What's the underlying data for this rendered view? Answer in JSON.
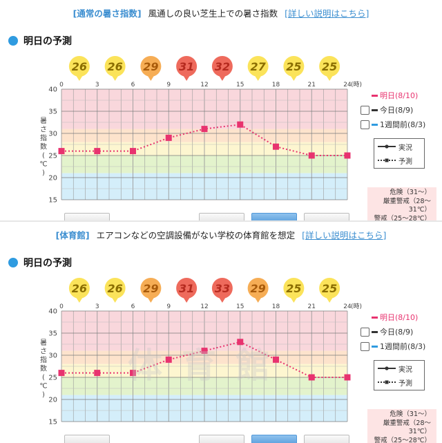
{
  "panels": [
    {
      "tag": "[通常の暑さ指数]",
      "description": "風通しの良い芝生上での暑さ指数",
      "link": "[詳しい説明はこちら]",
      "section_title": "明日の予測",
      "watermark": "",
      "legend": {
        "tomorrow": "明日(8/10)",
        "today": "今日(8/9)",
        "week_ago": "1週間前(8/3)",
        "actual": "実況",
        "forecast": "予測",
        "tomorrow_color": "#e8336f",
        "week_ago_color": "#2f9be0"
      },
      "warning": {
        "danger": "危険（31～）",
        "severe": "厳重警戒（28～31℃）",
        "caution": "警戒（25～28℃）"
      }
    },
    {
      "tag": "[体育館]",
      "description": "エアコンなどの空調設備がない学校の体育館を想定",
      "link": "[詳しい説明はこちら]",
      "section_title": "明日の予測",
      "watermark": "体育館",
      "legend": {
        "tomorrow": "明日(8/10)",
        "today": "今日(8/9)",
        "week_ago": "1週間前(8/3)",
        "actual": "実況",
        "forecast": "予測",
        "tomorrow_color": "#e8336f",
        "week_ago_color": "#2f9be0"
      },
      "warning": {
        "danger": "危険（31～）",
        "severe": "厳重警戒（28～31℃）",
        "caution": "警戒（25～28℃）"
      }
    }
  ],
  "chart_data": [
    {
      "type": "line",
      "x": [
        0,
        3,
        6,
        9,
        12,
        15,
        18,
        21,
        24
      ],
      "x_ticks": [
        "0",
        "3",
        "6",
        "9",
        "12",
        "15",
        "18",
        "21",
        "24"
      ],
      "x_unit": "(時)",
      "series": [
        {
          "name": "明日(8/10)",
          "values": [
            26,
            26,
            26,
            29,
            31,
            32,
            27,
            25,
            25
          ]
        }
      ],
      "badges": [
        26,
        26,
        29,
        31,
        32,
        27,
        25,
        25
      ],
      "ylabel": "暑さ指数(℃)",
      "ylim": [
        15,
        40
      ],
      "y_ticks": [
        "40",
        "35",
        "30",
        "25",
        "20",
        "15"
      ],
      "bands": {
        "danger": "#f9d7dc",
        "severe": "#fde3cc",
        "caution": "#fdf6d0",
        "care": "#e3f3cc",
        "safe": "#d4eefa"
      },
      "grid": true
    },
    {
      "type": "line",
      "x": [
        0,
        3,
        6,
        9,
        12,
        15,
        18,
        21,
        24
      ],
      "x_ticks": [
        "0",
        "3",
        "6",
        "9",
        "12",
        "15",
        "18",
        "21",
        "24"
      ],
      "x_unit": "(時)",
      "series": [
        {
          "name": "明日(8/10)",
          "values": [
            26,
            26,
            26,
            29,
            31,
            33,
            29,
            25,
            25
          ]
        }
      ],
      "badges": [
        26,
        26,
        29,
        31,
        33,
        29,
        25,
        25
      ],
      "ylabel": "暑さ指数(℃)",
      "ylim": [
        15,
        40
      ],
      "y_ticks": [
        "40",
        "35",
        "30",
        "25",
        "20",
        "15"
      ],
      "bands": {
        "danger": "#f9d7dc",
        "severe": "#fde3cc",
        "caution": "#fdf6d0",
        "care": "#e3f3cc",
        "safe": "#d4eefa"
      },
      "grid": true
    }
  ]
}
